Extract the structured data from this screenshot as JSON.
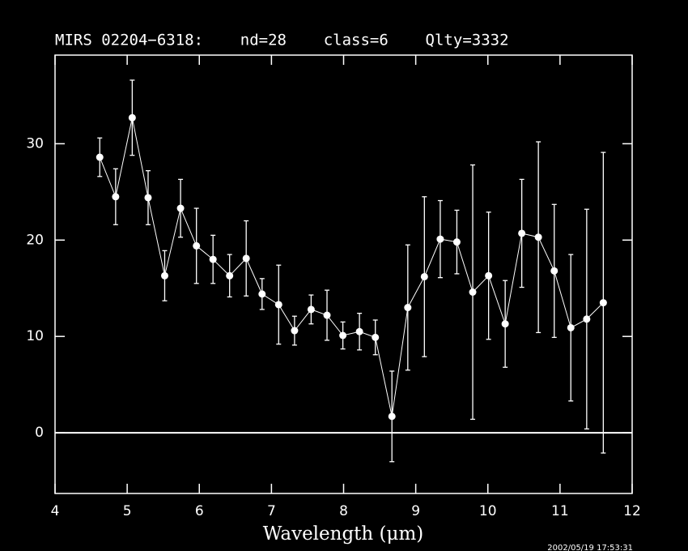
{
  "chart_data": {
    "type": "errorline",
    "title": "MIRS 02204−6318:    nd=28    class=6    Qlty=3332",
    "xlabel": "Wavelength (μm)",
    "timestamp": "2002/05/19 17:53:31",
    "background": "#000000",
    "color": "#ffffff",
    "zero_line": true,
    "xlim": [
      4,
      12
    ],
    "xticks": [
      4,
      5,
      6,
      7,
      8,
      9,
      10,
      11,
      12
    ],
    "ylim": [
      -6.3,
      39.2
    ],
    "yticks": [
      0,
      10,
      20,
      30
    ],
    "x": [
      4.62,
      4.84,
      5.07,
      5.29,
      5.52,
      5.74,
      5.96,
      6.19,
      6.42,
      6.65,
      6.87,
      7.1,
      7.32,
      7.55,
      7.77,
      7.99,
      8.22,
      8.44,
      8.67,
      8.89,
      9.12,
      9.34,
      9.57,
      9.79,
      10.01,
      10.24,
      10.47,
      10.7,
      10.92,
      11.15,
      11.37,
      11.6
    ],
    "series": [
      {
        "values": [
          28.6,
          24.5,
          32.7,
          24.4,
          16.3,
          23.3,
          19.4,
          18.0,
          16.3,
          18.1,
          14.4,
          13.3,
          10.6,
          12.8,
          12.2,
          10.1,
          10.5,
          9.9,
          1.7,
          13.0,
          16.2,
          20.1,
          19.8,
          14.6,
          16.3,
          11.3,
          20.7,
          20.3,
          16.8,
          10.9,
          11.8,
          13.5
        ],
        "errors": [
          2.0,
          2.9,
          3.9,
          2.8,
          2.6,
          3.0,
          3.9,
          2.5,
          2.2,
          3.9,
          1.6,
          4.1,
          1.5,
          1.5,
          2.6,
          1.4,
          1.9,
          1.8,
          4.7,
          6.5,
          8.3,
          4.0,
          3.3,
          13.2,
          6.6,
          4.5,
          5.6,
          9.9,
          6.9,
          7.6,
          11.4,
          15.6
        ]
      }
    ]
  }
}
